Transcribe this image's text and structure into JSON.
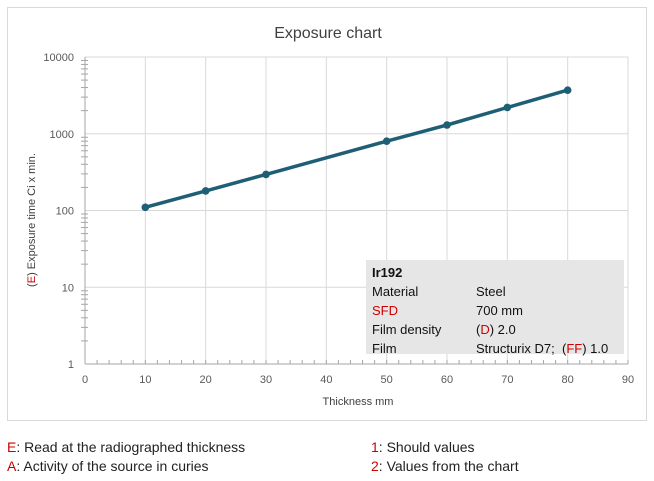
{
  "chart_data": {
    "type": "line",
    "title": "Exposure chart",
    "xlabel": "Thickness mm",
    "ylabel_prefix": "(",
    "ylabel_key": "E",
    "ylabel_suffix": ") Exposure time Ci x min.",
    "x_ticks": [
      "0",
      "10",
      "20",
      "30",
      "40",
      "50",
      "60",
      "70",
      "80",
      "90"
    ],
    "y_ticks": [
      "1",
      "10",
      "100",
      "1000",
      "10000"
    ],
    "xlim": [
      0,
      90
    ],
    "ylim": [
      1,
      10000
    ],
    "y_scale": "log",
    "grid": true,
    "line_color": "#1f5f75",
    "series": [
      {
        "x": [
          10,
          20,
          30,
          50,
          60,
          70,
          80
        ],
        "values": [
          110,
          180,
          295,
          800,
          1300,
          2200,
          3700
        ]
      }
    ]
  },
  "info_box": {
    "heading": "Ir192",
    "material_label": "Material",
    "material_value": "Steel",
    "sfd_label": "SFD",
    "sfd_value": "700 mm",
    "density_label": "Film density",
    "density_open": "(",
    "density_key": "D",
    "density_close": ") 2.0",
    "film_label": "Film",
    "film_value": "Structurix D7;",
    "film_open": "(",
    "film_key": "FF",
    "film_close": ") 1.0"
  },
  "footer": {
    "e_key": "E",
    "e_text": ": Read at the radiographed thickness",
    "a_key": "A",
    "a_text": ": Activity of the source in curies",
    "n1_key": "1",
    "n1_text": ": Should values",
    "n2_key": "2",
    "n2_text": ": Values from the chart"
  },
  "colors": {
    "accent_red": "#d00000",
    "info_bg": "#e7e6e6",
    "grid": "#d9d9d9"
  }
}
